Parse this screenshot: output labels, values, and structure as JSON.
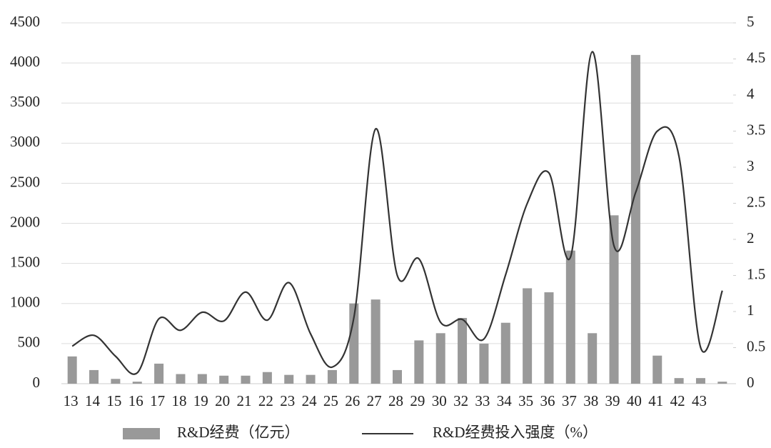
{
  "chart_data": {
    "type": "bar_line",
    "categories": [
      "13",
      "14",
      "15",
      "16",
      "17",
      "18",
      "19",
      "20",
      "21",
      "22",
      "23",
      "24",
      "25",
      "26",
      "27",
      "28",
      "29",
      "30",
      "32",
      "33",
      "34",
      "35",
      "36",
      "37",
      "38",
      "39",
      "40",
      "41",
      "42",
      "43",
      null
    ],
    "series": [
      {
        "name": "R&D经费（亿元）",
        "type": "bar",
        "color": "#999999",
        "values": [
          340,
          170,
          60,
          25,
          250,
          120,
          120,
          100,
          100,
          145,
          110,
          110,
          170,
          1000,
          1050,
          170,
          540,
          630,
          820,
          500,
          760,
          1190,
          1140,
          1660,
          630,
          2100,
          4100,
          350,
          70,
          70,
          25
        ]
      },
      {
        "name": "R&D经费投入强度（%）",
        "type": "line",
        "axis": "y2",
        "color": "#333333",
        "values": [
          0.52,
          0.67,
          0.38,
          0.15,
          0.9,
          0.74,
          0.99,
          0.87,
          1.27,
          0.88,
          1.4,
          0.69,
          0.23,
          0.92,
          3.53,
          1.5,
          1.73,
          0.85,
          0.89,
          0.62,
          1.51,
          2.5,
          2.92,
          1.76,
          4.6,
          1.91,
          2.65,
          3.5,
          3.15,
          0.5,
          1.29
        ]
      }
    ],
    "ylim": [
      0,
      4500
    ],
    "yticks": [
      0,
      500,
      1000,
      1500,
      2000,
      2500,
      3000,
      3500,
      4000,
      4500
    ],
    "y2lim": [
      0,
      5
    ],
    "y2ticks": [
      0,
      0.5,
      1,
      1.5,
      2,
      2.5,
      3,
      3.5,
      4,
      4.5,
      5
    ],
    "grid": true
  }
}
